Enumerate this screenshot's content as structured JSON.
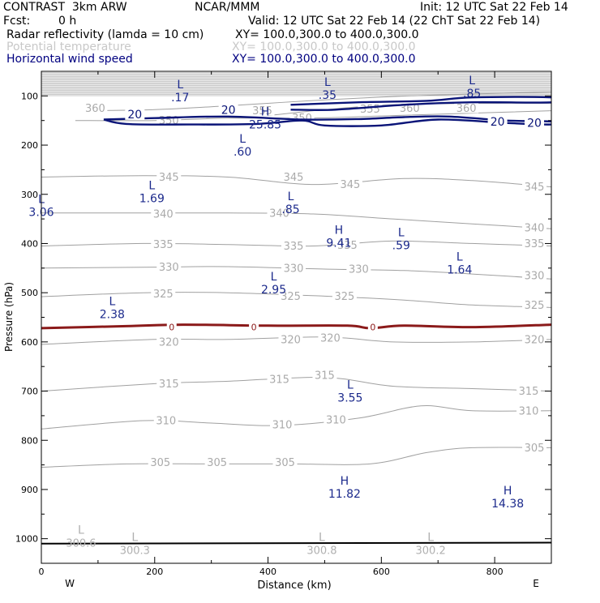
{
  "header": {
    "model": "CONTRAST  3km ARW",
    "center": "NCAR/MMM",
    "init": "Init: 12 UTC Sat 22 Feb 14",
    "fcst_label": "Fcst:",
    "fcst_value": "0 h",
    "valid": "Valid: 12 UTC Sat 22 Feb 14 (22 ChT Sat 22 Feb 14)"
  },
  "fields": [
    {
      "name": "Radar reflectivity (lamda = 10 cm)",
      "xy": "XY= 100.0,300.0 to 400.0,300.0",
      "color": "#000000"
    },
    {
      "name": "Potential temperature",
      "xy": "XY= 100.0,300.0 to 400.0,300.0",
      "color": "#c8c8c8"
    },
    {
      "name": "Horizontal wind speed",
      "xy": "XY= 100.0,300.0 to 400.0,300.0",
      "color": "#000080"
    }
  ],
  "colors": {
    "theta": "#a0a0a0",
    "theta_label": "#aaaaaa",
    "wind": "#0a1478",
    "freezing": "#8b1a1a",
    "hl_wind": "#1c2a8c",
    "hl_theta": "#b0b0b0",
    "axis": "#000000"
  },
  "chart_data": {
    "type": "cross-section",
    "xlabel": "Distance (km)",
    "ylabel": "Pressure (hPa)",
    "xlim": [
      0,
      900
    ],
    "ylim": [
      1050,
      50
    ],
    "xticks": [
      0,
      200,
      400,
      600,
      800
    ],
    "yticks": [
      100,
      200,
      300,
      400,
      500,
      600,
      700,
      800,
      900,
      1000
    ],
    "west_label": "W",
    "east_label": "E",
    "theta_lines": [
      {
        "value": 305,
        "points": [
          [
            0,
            855
          ],
          [
            150,
            848
          ],
          [
            300,
            848
          ],
          [
            440,
            848
          ],
          [
            580,
            848
          ],
          [
            680,
            825
          ],
          [
            760,
            815
          ],
          [
            900,
            815
          ]
        ],
        "labels": [
          [
            210,
            845
          ],
          [
            310,
            845
          ],
          [
            430,
            845
          ],
          [
            870,
            815
          ]
        ]
      },
      {
        "value": 310,
        "points": [
          [
            0,
            777
          ],
          [
            180,
            760
          ],
          [
            300,
            765
          ],
          [
            420,
            770
          ],
          [
            560,
            755
          ],
          [
            670,
            730
          ],
          [
            760,
            740
          ],
          [
            900,
            740
          ]
        ],
        "labels": [
          [
            220,
            760
          ],
          [
            425,
            768
          ],
          [
            520,
            758
          ],
          [
            860,
            740
          ]
        ]
      },
      {
        "value": 315,
        "points": [
          [
            0,
            700
          ],
          [
            200,
            685
          ],
          [
            330,
            680
          ],
          [
            500,
            672
          ],
          [
            620,
            690
          ],
          [
            760,
            695
          ],
          [
            900,
            700
          ]
        ],
        "labels": [
          [
            225,
            685
          ],
          [
            420,
            676
          ],
          [
            500,
            668
          ],
          [
            860,
            700
          ]
        ]
      },
      {
        "value": 320,
        "points": [
          [
            0,
            605
          ],
          [
            200,
            595
          ],
          [
            330,
            595
          ],
          [
            500,
            590
          ],
          [
            620,
            600
          ],
          [
            760,
            600
          ],
          [
            900,
            595
          ]
        ],
        "labels": [
          [
            225,
            600
          ],
          [
            440,
            595
          ],
          [
            510,
            592
          ],
          [
            870,
            595
          ]
        ]
      },
      {
        "value": 325,
        "points": [
          [
            0,
            508
          ],
          [
            180,
            500
          ],
          [
            330,
            500
          ],
          [
            500,
            507
          ],
          [
            640,
            515
          ],
          [
            760,
            525
          ],
          [
            900,
            530
          ]
        ],
        "labels": [
          [
            215,
            502
          ],
          [
            440,
            507
          ],
          [
            535,
            507
          ],
          [
            870,
            525
          ]
        ]
      },
      {
        "value": 330,
        "points": [
          [
            0,
            450
          ],
          [
            200,
            448
          ],
          [
            330,
            447
          ],
          [
            500,
            452
          ],
          [
            640,
            455
          ],
          [
            760,
            462
          ],
          [
            900,
            472
          ]
        ],
        "labels": [
          [
            225,
            448
          ],
          [
            445,
            450
          ],
          [
            560,
            452
          ],
          [
            870,
            465
          ]
        ]
      },
      {
        "value": 335,
        "points": [
          [
            0,
            405
          ],
          [
            180,
            400
          ],
          [
            330,
            402
          ],
          [
            480,
            405
          ],
          [
            620,
            395
          ],
          [
            760,
            400
          ],
          [
            900,
            405
          ]
        ],
        "labels": [
          [
            215,
            402
          ],
          [
            445,
            405
          ],
          [
            540,
            403
          ],
          [
            870,
            400
          ]
        ]
      },
      {
        "value": 340,
        "points": [
          [
            0,
            338
          ],
          [
            180,
            338
          ],
          [
            330,
            338
          ],
          [
            480,
            340
          ],
          [
            620,
            350
          ],
          [
            760,
            360
          ],
          [
            900,
            370
          ]
        ],
        "labels": [
          [
            215,
            340
          ],
          [
            420,
            338
          ],
          [
            870,
            368
          ]
        ]
      },
      {
        "value": 345,
        "points": [
          [
            0,
            265
          ],
          [
            180,
            262
          ],
          [
            330,
            265
          ],
          [
            480,
            280
          ],
          [
            640,
            268
          ],
          [
            760,
            272
          ],
          [
            900,
            285
          ]
        ],
        "labels": [
          [
            225,
            265
          ],
          [
            445,
            265
          ],
          [
            545,
            280
          ],
          [
            870,
            285
          ]
        ]
      },
      {
        "value": 350,
        "points": [
          [
            60,
            150
          ],
          [
            200,
            150
          ],
          [
            330,
            145
          ],
          [
            480,
            145
          ],
          [
            620,
            140
          ],
          [
            760,
            135
          ],
          [
            900,
            130
          ]
        ],
        "labels": [
          [
            225,
            150
          ],
          [
            460,
            145
          ]
        ]
      },
      {
        "value": 355,
        "points": [
          [
            400,
            140
          ],
          [
            500,
            128
          ],
          [
            620,
            118
          ],
          [
            760,
            115
          ],
          [
            900,
            115
          ]
        ],
        "labels": [
          [
            390,
            130
          ],
          [
            580,
            127
          ]
        ]
      },
      {
        "value": 360,
        "points": [
          [
            80,
            130
          ],
          [
            200,
            128
          ],
          [
            330,
            120
          ],
          [
            500,
            108
          ],
          [
            650,
            100
          ],
          [
            800,
            95
          ],
          [
            900,
            92
          ]
        ],
        "labels": [
          [
            95,
            125
          ],
          [
            650,
            125
          ],
          [
            750,
            125
          ]
        ]
      }
    ],
    "wind_contour": {
      "value": 20,
      "paths": [
        [
          [
            110,
            148
          ],
          [
            200,
            145
          ],
          [
            330,
            142
          ],
          [
            460,
            148
          ],
          [
            560,
            147
          ],
          [
            640,
            143
          ],
          [
            720,
            142
          ],
          [
            820,
            150
          ],
          [
            900,
            152
          ],
          [
            900,
            158
          ],
          [
            820,
            155
          ],
          [
            700,
            148
          ],
          [
            600,
            160
          ],
          [
            500,
            160
          ],
          [
            460,
            150
          ],
          [
            380,
            157
          ],
          [
            260,
            158
          ],
          [
            150,
            157
          ],
          [
            110,
            148
          ]
        ],
        [
          [
            440,
            118
          ],
          [
            560,
            113
          ],
          [
            680,
            110
          ],
          [
            760,
            103
          ],
          [
            900,
            103
          ],
          [
            900,
            113
          ],
          [
            760,
            113
          ],
          [
            640,
            118
          ],
          [
            520,
            128
          ],
          [
            440,
            128
          ]
        ]
      ],
      "labels": [
        [
          165,
          137
        ],
        [
          330,
          128
        ],
        [
          805,
          152
        ],
        [
          870,
          155
        ]
      ]
    },
    "freezing_level": {
      "value": 0,
      "points": [
        [
          0,
          572
        ],
        [
          150,
          568
        ],
        [
          250,
          565
        ],
        [
          400,
          567
        ],
        [
          540,
          567
        ],
        [
          580,
          572
        ],
        [
          640,
          567
        ],
        [
          760,
          570
        ],
        [
          900,
          565
        ]
      ],
      "labels": [
        [
          230,
          570
        ],
        [
          375,
          570
        ],
        [
          585,
          570
        ]
      ]
    },
    "ground": {
      "points": [
        [
          0,
          1010
        ],
        [
          900,
          1008
        ]
      ]
    },
    "hl_wind": [
      {
        "type": "L",
        "value": ".17",
        "x": 245,
        "y": 85
      },
      {
        "type": "L",
        "value": ".35",
        "x": 505,
        "y": 80
      },
      {
        "type": "L",
        "value": ".85",
        "x": 760,
        "y": 76
      },
      {
        "type": "H",
        "value": "25.85",
        "x": 395,
        "y": 140
      },
      {
        "type": "L",
        "value": ".60",
        "x": 355,
        "y": 195
      },
      {
        "type": "L",
        "value": "3.06",
        "x": 0,
        "y": 318
      },
      {
        "type": "L",
        "value": "1.69",
        "x": 195,
        "y": 290
      },
      {
        "type": "L",
        "value": ".85",
        "x": 440,
        "y": 312
      },
      {
        "type": "H",
        "value": "9.41",
        "x": 525,
        "y": 380
      },
      {
        "type": "L",
        "value": ".59",
        "x": 635,
        "y": 385
      },
      {
        "type": "L",
        "value": "1.64",
        "x": 738,
        "y": 435
      },
      {
        "type": "L",
        "value": "2.95",
        "x": 410,
        "y": 475
      },
      {
        "type": "L",
        "value": "2.38",
        "x": 125,
        "y": 525
      },
      {
        "type": "L",
        "value": "3.55",
        "x": 545,
        "y": 695
      },
      {
        "type": "H",
        "value": "11.82",
        "x": 535,
        "y": 890
      },
      {
        "type": "H",
        "value": "14.38",
        "x": 823,
        "y": 910
      }
    ],
    "hl_theta": [
      {
        "type": "L",
        "value": "300.6",
        "x": 70,
        "y": 990
      },
      {
        "type": "L",
        "value": "300.3",
        "x": 165,
        "y": 1005
      },
      {
        "type": "L",
        "value": "300.8",
        "x": 495,
        "y": 1005
      },
      {
        "type": "L",
        "value": "300.2",
        "x": 687,
        "y": 1005
      }
    ]
  }
}
